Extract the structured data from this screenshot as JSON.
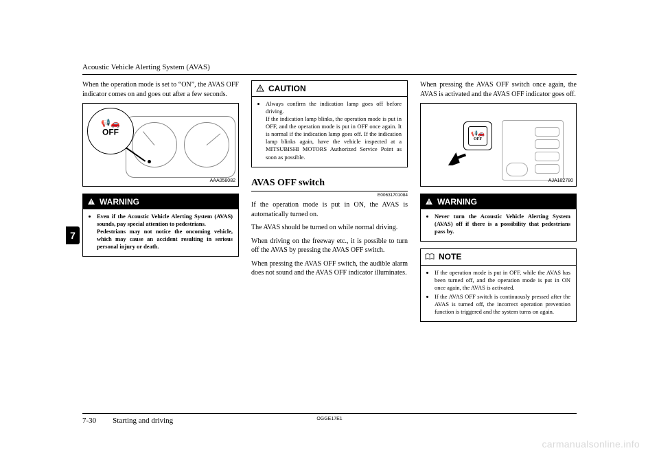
{
  "header": {
    "title": "Acoustic Vehicle Alerting System (AVAS)"
  },
  "tab": {
    "label": "7"
  },
  "col1": {
    "intro": "When the operation mode is set to “ON”, the AVAS OFF indicator comes on and goes out after a few seconds.",
    "fig_caption": "AAA058082",
    "off_label": "OFF",
    "warning_title": "WARNING",
    "warning_item": "Even if the Acoustic Vehicle Alerting System (AVAS) sounds, pay special attention to pedestrians.\nPedestrians may not notice the oncoming vehicle, which may cause an accident resulting in serious personal injury or death."
  },
  "col2": {
    "caution_title": "CAUTION",
    "caution_item": "Always confirm the indication lamp goes off before driving.\nIf the indication lamp blinks, the operation mode is put in OFF, and the operation mode is put in OFF once again. It is normal if the indication lamp goes off. If the indication lamp blinks again, have the vehicle inspected at a MITSUBISHI MOTORS Authorized Service Point as soon as possible.",
    "section_title": "AVAS OFF switch",
    "section_code": "E00631701084",
    "p1": "If the operation mode is put in ON, the AVAS is automatically turned on.",
    "p2": "The AVAS should be turned on while normal driving.",
    "p3": "When driving on the freeway etc., it is possible to turn off the AVAS by pressing the AVAS OFF switch.",
    "p4": "When pressing the AVAS OFF switch, the audible alarm does not sound and the AVAS OFF indicator illuminates."
  },
  "col3": {
    "intro": "When pressing the AVAS OFF switch once again, the AVAS is activated and the AVAS OFF indicator goes off.",
    "fig_caption": "AJA102780",
    "sw_off": "OFF",
    "warning_title": "WARNING",
    "warning_item": "Never turn the Acoustic Vehicle Alerting System (AVAS) off if there is a possibility that pedestrians pass by.",
    "note_title": "NOTE",
    "note_item1": "If the operation mode is put in OFF, while the AVAS has been turned off, and the operation mode is put in ON once again, the AVAS is activated.",
    "note_item2": "If the AVAS OFF switch is continuously pressed after the AVAS is turned off, the incorrect operation prevention function is triggered and the system turns on again."
  },
  "footer": {
    "page_num": "7-30",
    "chapter": "Starting and driving",
    "code": "OGGE17E1"
  },
  "watermark": "carmanualsonline.info",
  "colors": {
    "text": "#000000",
    "bg": "#ffffff",
    "box_title_bg": "#000000",
    "box_title_fg": "#ffffff",
    "watermark": "#d9d9d9",
    "figure_line": "#888888"
  }
}
